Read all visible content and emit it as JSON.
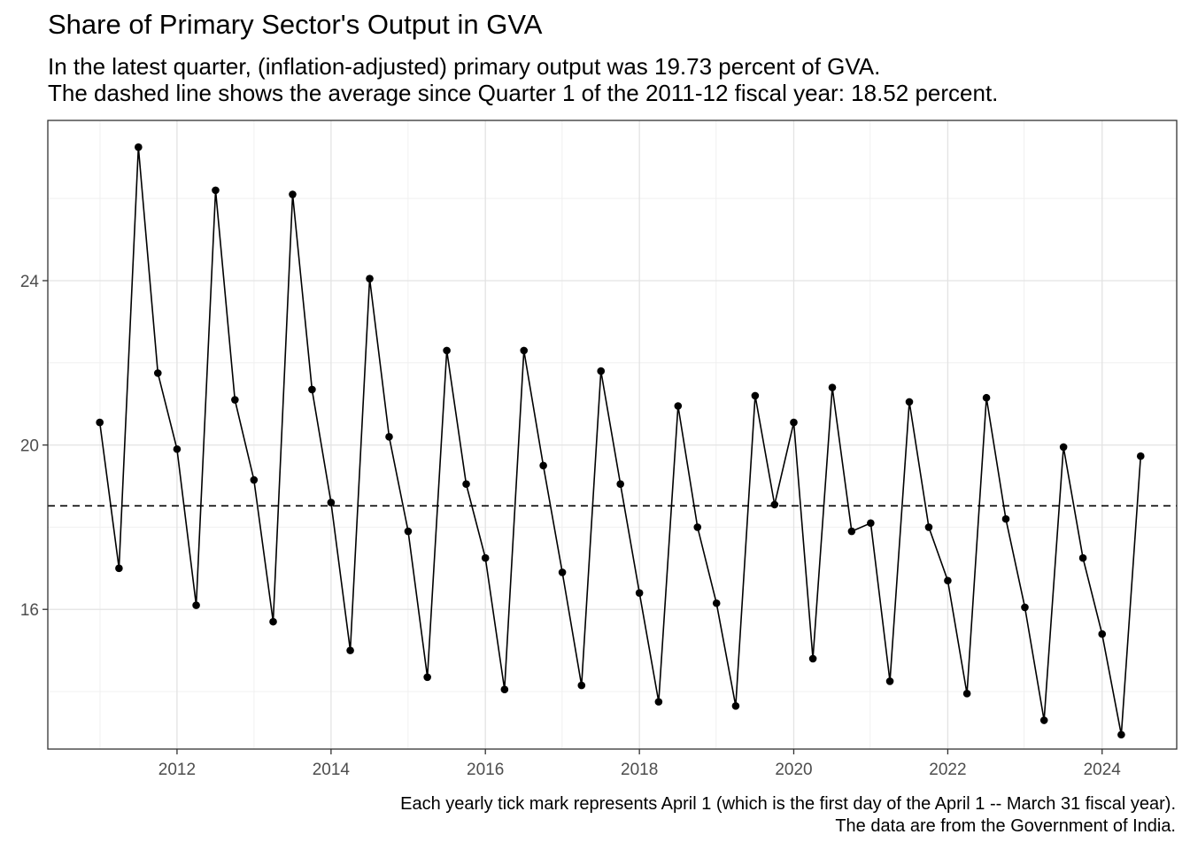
{
  "title": "Share of Primary Sector's Output in GVA",
  "subtitle_line1": "In the latest quarter, (inflation-adjusted) primary output was 19.73 percent of GVA.",
  "subtitle_line2": "The dashed line shows the average since Quarter 1 of the 2011-12 fiscal year: 18.52 percent.",
  "caption_line1": "Each yearly tick mark represents April 1 (which is the first day of the April 1 -- March 31 fiscal year).",
  "caption_line2": "The data are from the Government of India.",
  "chart_data": {
    "type": "line",
    "title": "Share of Primary Sector's Output in GVA",
    "xlabel": "",
    "ylabel": "",
    "x_is_time": true,
    "xlim": [
      "2010-07-29",
      "2025-03-21"
    ],
    "ylim": [
      12.6,
      27.9
    ],
    "x_ticks": [
      "2012",
      "2014",
      "2016",
      "2018",
      "2020",
      "2022",
      "2024"
    ],
    "y_ticks": [
      16,
      20,
      24
    ],
    "grid": true,
    "reference_line": {
      "value": 18.52,
      "style": "dashed"
    },
    "series": [
      {
        "points": [
          [
            "2011-04-01",
            20.55
          ],
          [
            "2011-07-01",
            17.0
          ],
          [
            "2011-10-01",
            27.25
          ],
          [
            "2012-01-01",
            21.75
          ],
          [
            "2012-04-01",
            19.9
          ],
          [
            "2012-07-01",
            16.1
          ],
          [
            "2012-10-01",
            26.2
          ],
          [
            "2013-01-01",
            21.1
          ],
          [
            "2013-04-01",
            19.15
          ],
          [
            "2013-07-01",
            15.7
          ],
          [
            "2013-10-01",
            26.1
          ],
          [
            "2014-01-01",
            21.35
          ],
          [
            "2014-04-01",
            18.6
          ],
          [
            "2014-07-01",
            15.0
          ],
          [
            "2014-10-01",
            24.05
          ],
          [
            "2015-01-01",
            20.2
          ],
          [
            "2015-04-01",
            17.9
          ],
          [
            "2015-07-01",
            14.35
          ],
          [
            "2015-10-01",
            22.3
          ],
          [
            "2016-01-01",
            19.05
          ],
          [
            "2016-04-01",
            17.25
          ],
          [
            "2016-07-01",
            14.05
          ],
          [
            "2016-10-01",
            22.3
          ],
          [
            "2017-01-01",
            19.5
          ],
          [
            "2017-04-01",
            16.9
          ],
          [
            "2017-07-01",
            14.15
          ],
          [
            "2017-10-01",
            21.8
          ],
          [
            "2018-01-01",
            19.05
          ],
          [
            "2018-04-01",
            16.4
          ],
          [
            "2018-07-01",
            13.75
          ],
          [
            "2018-10-01",
            20.95
          ],
          [
            "2019-01-01",
            18.0
          ],
          [
            "2019-04-01",
            16.15
          ],
          [
            "2019-07-01",
            13.65
          ],
          [
            "2019-10-01",
            21.2
          ],
          [
            "2020-01-01",
            18.55
          ],
          [
            "2020-04-01",
            20.55
          ],
          [
            "2020-07-01",
            14.8
          ],
          [
            "2020-10-01",
            21.4
          ],
          [
            "2021-01-01",
            17.9
          ],
          [
            "2021-04-01",
            18.1
          ],
          [
            "2021-07-01",
            14.25
          ],
          [
            "2021-10-01",
            21.05
          ],
          [
            "2022-01-01",
            18.0
          ],
          [
            "2022-04-01",
            16.7
          ],
          [
            "2022-07-01",
            13.95
          ],
          [
            "2022-10-01",
            21.15
          ],
          [
            "2023-01-01",
            18.2
          ],
          [
            "2023-04-01",
            16.05
          ],
          [
            "2023-07-01",
            13.3
          ],
          [
            "2023-10-01",
            19.95
          ],
          [
            "2024-01-01",
            17.25
          ],
          [
            "2024-04-01",
            15.4
          ],
          [
            "2024-07-01",
            12.95
          ],
          [
            "2024-10-01",
            19.73
          ]
        ]
      }
    ]
  }
}
